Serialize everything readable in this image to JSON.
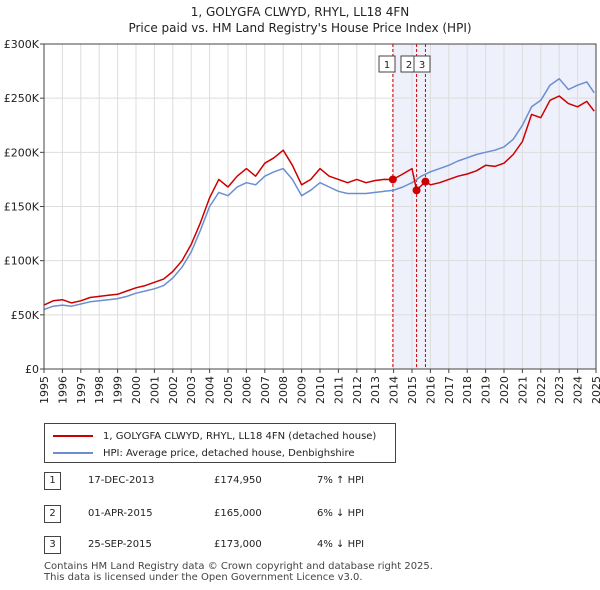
{
  "chart_data": {
    "type": "line",
    "title": "1, GOLYGFA CLWYD, RHYL, LL18 4FN",
    "subtitle": "Price paid vs. HM Land Registry's House Price Index (HPI)",
    "xlim": [
      1995,
      2025
    ],
    "ylim": [
      0,
      300000
    ],
    "x_ticks": [
      "1995",
      "1996",
      "1997",
      "1998",
      "1999",
      "2000",
      "2001",
      "2002",
      "2003",
      "2004",
      "2005",
      "2006",
      "2007",
      "2008",
      "2009",
      "2010",
      "2011",
      "2012",
      "2013",
      "2014",
      "2015",
      "2016",
      "2017",
      "2018",
      "2019",
      "2020",
      "2021",
      "2022",
      "2023",
      "2024",
      "2025"
    ],
    "y_ticks": [
      {
        "value": 0,
        "label": "£0"
      },
      {
        "value": 50000,
        "label": "£50K"
      },
      {
        "value": 100000,
        "label": "£100K"
      },
      {
        "value": 150000,
        "label": "£150K"
      },
      {
        "value": 200000,
        "label": "£200K"
      },
      {
        "value": 250000,
        "label": "£250K"
      },
      {
        "value": 300000,
        "label": "£300K"
      }
    ],
    "grid": true,
    "shaded_region": {
      "from": 2013.96,
      "to": 2025.0,
      "color": "#eef0fb"
    },
    "series": [
      {
        "name": "1, GOLYGFA CLWYD, RHYL, LL18 4FN (detached house)",
        "color": "#cc0000",
        "points": [
          [
            1995.0,
            59000
          ],
          [
            1995.5,
            63000
          ],
          [
            1996.0,
            64000
          ],
          [
            1996.5,
            61000
          ],
          [
            1997.0,
            63000
          ],
          [
            1997.5,
            66000
          ],
          [
            1998.0,
            67000
          ],
          [
            1998.5,
            68000
          ],
          [
            1999.0,
            69000
          ],
          [
            1999.5,
            72000
          ],
          [
            2000.0,
            75000
          ],
          [
            2000.5,
            77000
          ],
          [
            2001.0,
            80000
          ],
          [
            2001.5,
            83000
          ],
          [
            2002.0,
            90000
          ],
          [
            2002.5,
            100000
          ],
          [
            2003.0,
            115000
          ],
          [
            2003.5,
            135000
          ],
          [
            2004.0,
            158000
          ],
          [
            2004.5,
            175000
          ],
          [
            2005.0,
            168000
          ],
          [
            2005.5,
            178000
          ],
          [
            2006.0,
            185000
          ],
          [
            2006.5,
            178000
          ],
          [
            2007.0,
            190000
          ],
          [
            2007.5,
            195000
          ],
          [
            2008.0,
            202000
          ],
          [
            2008.5,
            188000
          ],
          [
            2009.0,
            170000
          ],
          [
            2009.5,
            175000
          ],
          [
            2010.0,
            185000
          ],
          [
            2010.5,
            178000
          ],
          [
            2011.0,
            175000
          ],
          [
            2011.5,
            172000
          ],
          [
            2012.0,
            175000
          ],
          [
            2012.5,
            172000
          ],
          [
            2013.0,
            174000
          ],
          [
            2013.5,
            175000
          ],
          [
            2013.96,
            174950
          ],
          [
            2014.5,
            180000
          ],
          [
            2015.0,
            185000
          ],
          [
            2015.25,
            165000
          ],
          [
            2015.73,
            173000
          ],
          [
            2016.0,
            170000
          ],
          [
            2016.5,
            172000
          ],
          [
            2017.0,
            175000
          ],
          [
            2017.5,
            178000
          ],
          [
            2018.0,
            180000
          ],
          [
            2018.5,
            183000
          ],
          [
            2019.0,
            188000
          ],
          [
            2019.5,
            187000
          ],
          [
            2020.0,
            190000
          ],
          [
            2020.5,
            198000
          ],
          [
            2021.0,
            210000
          ],
          [
            2021.5,
            235000
          ],
          [
            2022.0,
            232000
          ],
          [
            2022.5,
            248000
          ],
          [
            2023.0,
            252000
          ],
          [
            2023.5,
            245000
          ],
          [
            2024.0,
            242000
          ],
          [
            2024.5,
            247000
          ],
          [
            2024.9,
            238000
          ]
        ]
      },
      {
        "name": "HPI: Average price, detached house, Denbighshire",
        "color": "#6a8fd0",
        "points": [
          [
            1995.0,
            55000
          ],
          [
            1995.5,
            58000
          ],
          [
            1996.0,
            59000
          ],
          [
            1996.5,
            58000
          ],
          [
            1997.0,
            60000
          ],
          [
            1997.5,
            62000
          ],
          [
            1998.0,
            63000
          ],
          [
            1998.5,
            64000
          ],
          [
            1999.0,
            65000
          ],
          [
            1999.5,
            67000
          ],
          [
            2000.0,
            70000
          ],
          [
            2000.5,
            72000
          ],
          [
            2001.0,
            74000
          ],
          [
            2001.5,
            77000
          ],
          [
            2002.0,
            84000
          ],
          [
            2002.5,
            94000
          ],
          [
            2003.0,
            108000
          ],
          [
            2003.5,
            128000
          ],
          [
            2004.0,
            150000
          ],
          [
            2004.5,
            163000
          ],
          [
            2005.0,
            160000
          ],
          [
            2005.5,
            168000
          ],
          [
            2006.0,
            172000
          ],
          [
            2006.5,
            170000
          ],
          [
            2007.0,
            178000
          ],
          [
            2007.5,
            182000
          ],
          [
            2008.0,
            185000
          ],
          [
            2008.5,
            175000
          ],
          [
            2009.0,
            160000
          ],
          [
            2009.5,
            165000
          ],
          [
            2010.0,
            172000
          ],
          [
            2010.5,
            168000
          ],
          [
            2011.0,
            164000
          ],
          [
            2011.5,
            162000
          ],
          [
            2012.0,
            162000
          ],
          [
            2012.5,
            162000
          ],
          [
            2013.0,
            163000
          ],
          [
            2013.5,
            164000
          ],
          [
            2014.0,
            165000
          ],
          [
            2014.5,
            168000
          ],
          [
            2015.0,
            172000
          ],
          [
            2015.5,
            178000
          ],
          [
            2016.0,
            182000
          ],
          [
            2016.5,
            185000
          ],
          [
            2017.0,
            188000
          ],
          [
            2017.5,
            192000
          ],
          [
            2018.0,
            195000
          ],
          [
            2018.5,
            198000
          ],
          [
            2019.0,
            200000
          ],
          [
            2019.5,
            202000
          ],
          [
            2020.0,
            205000
          ],
          [
            2020.5,
            212000
          ],
          [
            2021.0,
            225000
          ],
          [
            2021.5,
            242000
          ],
          [
            2022.0,
            248000
          ],
          [
            2022.5,
            262000
          ],
          [
            2023.0,
            268000
          ],
          [
            2023.5,
            258000
          ],
          [
            2024.0,
            262000
          ],
          [
            2024.5,
            265000
          ],
          [
            2024.9,
            255000
          ]
        ]
      }
    ],
    "sales": [
      {
        "label": "1",
        "date": "17-DEC-2013",
        "x": 2013.96,
        "price": 174950,
        "price_label": "£174,950",
        "hpi_change": "7% ↑ HPI"
      },
      {
        "label": "2",
        "date": "01-APR-2015",
        "x": 2015.25,
        "price": 165000,
        "price_label": "£165,000",
        "hpi_change": "6% ↓ HPI"
      },
      {
        "label": "3",
        "date": "25-SEP-2015",
        "x": 2015.73,
        "price": 173000,
        "price_label": "£173,000",
        "hpi_change": "4% ↓ HPI"
      }
    ],
    "legend": [
      {
        "label": "1, GOLYGFA CLWYD, RHYL, LL18 4FN (detached house)",
        "color": "#cc0000"
      },
      {
        "label": "HPI: Average price, detached house, Denbighshire",
        "color": "#6a8fd0"
      }
    ]
  },
  "footer": {
    "line1": "Contains HM Land Registry data © Crown copyright and database right 2025.",
    "line2": "This data is licensed under the Open Government Licence v3.0."
  }
}
